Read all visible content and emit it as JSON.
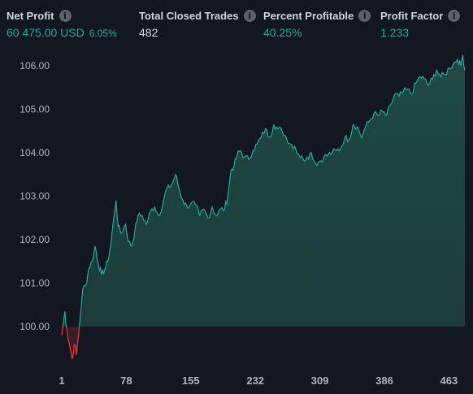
{
  "stats": [
    {
      "label": "Net Profit",
      "value": "60 475.00 USD",
      "extra": "6.05%",
      "color": "#26a69a"
    },
    {
      "label": "Total Closed Trades",
      "value": "482",
      "extra": "",
      "color": "#d1d4dc"
    },
    {
      "label": "Percent Profitable",
      "value": "40.25%",
      "extra": "",
      "color": "#26a69a"
    },
    {
      "label": "Profit Factor",
      "value": "1.233",
      "extra": "",
      "color": "#26a69a"
    }
  ],
  "info_icon": "info-icon",
  "chart_data": {
    "type": "area",
    "baseline": 100.0,
    "y_ticks": [
      "100.00",
      "101.00",
      "102.00",
      "103.00",
      "104.00",
      "105.00",
      "106.00"
    ],
    "x_ticks": [
      "1",
      "78",
      "155",
      "232",
      "309",
      "386",
      "463"
    ],
    "ylim": [
      99.2,
      106.3
    ],
    "xlim": [
      1,
      482
    ],
    "grid": false,
    "colors": {
      "positive": "#26a69a",
      "negative": "#f23645",
      "fill_positive": "#1f4a45"
    },
    "series": [
      {
        "values": [
          [
            1,
            99.8
          ],
          [
            4,
            100.35
          ],
          [
            6,
            99.9
          ],
          [
            9,
            99.5
          ],
          [
            11,
            99.25
          ],
          [
            13,
            99.6
          ],
          [
            15,
            99.35
          ],
          [
            17,
            99.8
          ],
          [
            19,
            100.3
          ],
          [
            21,
            100.85
          ],
          [
            24,
            100.95
          ],
          [
            27,
            101.35
          ],
          [
            30,
            101.5
          ],
          [
            33,
            101.85
          ],
          [
            36,
            101.45
          ],
          [
            39,
            101.2
          ],
          [
            42,
            101.3
          ],
          [
            45,
            101.5
          ],
          [
            48,
            101.9
          ],
          [
            51,
            102.55
          ],
          [
            53,
            102.9
          ],
          [
            55,
            102.3
          ],
          [
            58,
            102.15
          ],
          [
            62,
            102.35
          ],
          [
            65,
            101.95
          ],
          [
            68,
            101.85
          ],
          [
            71,
            102.2
          ],
          [
            74,
            102.55
          ],
          [
            78,
            102.55
          ],
          [
            82,
            102.35
          ],
          [
            86,
            102.65
          ],
          [
            90,
            102.75
          ],
          [
            94,
            102.55
          ],
          [
            98,
            102.85
          ],
          [
            101,
            103.15
          ],
          [
            104,
            103.2
          ],
          [
            107,
            103.3
          ],
          [
            110,
            103.5
          ],
          [
            113,
            103.2
          ],
          [
            117,
            102.9
          ],
          [
            121,
            102.75
          ],
          [
            125,
            102.85
          ],
          [
            129,
            102.8
          ],
          [
            133,
            102.55
          ],
          [
            137,
            102.7
          ],
          [
            141,
            102.5
          ],
          [
            145,
            102.75
          ],
          [
            149,
            102.55
          ],
          [
            153,
            102.7
          ],
          [
            157,
            102.7
          ],
          [
            160,
            103.0
          ],
          [
            163,
            103.6
          ],
          [
            166,
            103.7
          ],
          [
            169,
            103.95
          ],
          [
            172,
            104.05
          ],
          [
            176,
            103.9
          ],
          [
            180,
            103.85
          ],
          [
            184,
            104.05
          ],
          [
            188,
            104.2
          ],
          [
            192,
            104.35
          ],
          [
            196,
            104.55
          ],
          [
            200,
            104.35
          ],
          [
            204,
            104.65
          ],
          [
            208,
            104.55
          ],
          [
            212,
            104.5
          ],
          [
            216,
            104.35
          ],
          [
            220,
            104.2
          ],
          [
            224,
            104.15
          ],
          [
            228,
            103.95
          ],
          [
            232,
            103.85
          ],
          [
            236,
            103.9
          ],
          [
            240,
            104.0
          ],
          [
            244,
            103.75
          ],
          [
            248,
            103.8
          ],
          [
            252,
            103.9
          ],
          [
            256,
            103.95
          ],
          [
            260,
            104.0
          ],
          [
            264,
            104.05
          ],
          [
            268,
            104.1
          ],
          [
            272,
            104.35
          ],
          [
            276,
            104.3
          ],
          [
            280,
            104.65
          ],
          [
            284,
            104.6
          ],
          [
            288,
            104.35
          ],
          [
            292,
            104.6
          ],
          [
            296,
            104.75
          ],
          [
            300,
            104.9
          ],
          [
            304,
            104.85
          ],
          [
            308,
            104.95
          ],
          [
            312,
            104.85
          ],
          [
            316,
            105.1
          ],
          [
            320,
            105.35
          ],
          [
            324,
            105.3
          ],
          [
            328,
            105.4
          ],
          [
            332,
            105.45
          ],
          [
            336,
            105.35
          ],
          [
            340,
            105.6
          ],
          [
            344,
            105.75
          ],
          [
            348,
            105.7
          ],
          [
            352,
            105.55
          ],
          [
            356,
            105.7
          ],
          [
            360,
            105.9
          ],
          [
            364,
            105.75
          ],
          [
            368,
            105.8
          ],
          [
            372,
            105.95
          ],
          [
            376,
            106.05
          ],
          [
            380,
            106.15
          ],
          [
            383,
            106.0
          ],
          [
            385,
            106.25
          ],
          [
            387,
            105.9
          ]
        ]
      }
    ]
  }
}
